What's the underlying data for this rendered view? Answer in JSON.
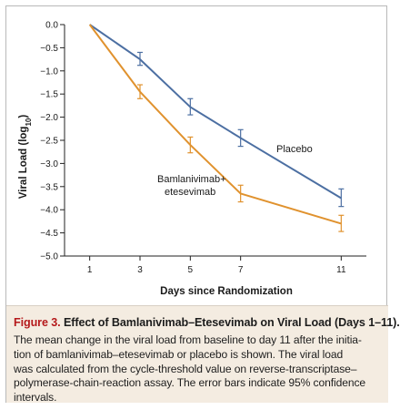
{
  "chart_data": {
    "type": "line",
    "xlabel": "Days since Randomization",
    "ylabel_main": "Viral Load (log",
    "ylabel_sub": "10",
    "ylabel_close": ")",
    "x": [
      1,
      3,
      5,
      7,
      11
    ],
    "x_ticks": [
      "1",
      "3",
      "5",
      "7",
      "11"
    ],
    "xlim": [
      0,
      12
    ],
    "ylim": [
      -5.0,
      0.0
    ],
    "y_ticks": [
      "0.0",
      "-0.5",
      "-1.0",
      "-1.5",
      "-2.0",
      "-2.5",
      "-3.0",
      "-3.5",
      "-4.0",
      "-4.5",
      "-5.0"
    ],
    "grid": false,
    "series": [
      {
        "name": "Placebo",
        "color": "#4c6fa2",
        "values": [
          0.0,
          -0.75,
          -1.78,
          -2.45,
          -3.75
        ],
        "error_low": [
          0.0,
          -0.88,
          -1.95,
          -2.63,
          -3.93
        ],
        "error_high": [
          0.0,
          -0.6,
          -1.6,
          -2.27,
          -3.55
        ]
      },
      {
        "name_line1": "Bamlanivimab+",
        "name_line2": "etesevimab",
        "color": "#e0922e",
        "values": [
          0.0,
          -1.45,
          -2.6,
          -3.65,
          -4.3
        ],
        "error_low": [
          0.0,
          -1.6,
          -2.77,
          -3.83,
          -4.47
        ],
        "error_high": [
          0.0,
          -1.3,
          -2.43,
          -3.47,
          -4.12
        ]
      }
    ]
  },
  "caption": {
    "figure_label": "Figure 3.",
    "title": "Effect of Bamlanivimab–Etesevimab on Viral Load (Days 1–11).",
    "lines": [
      "The mean change in the viral load from baseline to day 11 after the initia-",
      "tion of bamlanivimab–etesevimab or placebo is shown. The viral load",
      "was calculated from the cycle-threshold value on reverse-transcriptase–",
      "polymerase-chain-reaction assay. The error bars indicate 95% confidence",
      "intervals."
    ]
  }
}
